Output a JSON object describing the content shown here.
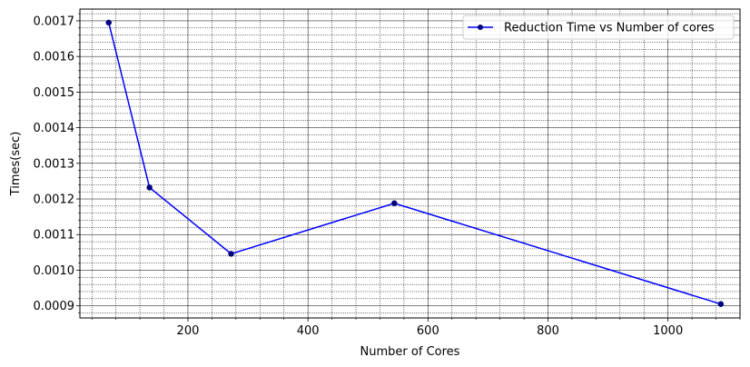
{
  "chart_data": {
    "type": "line",
    "title": "",
    "xlabel": "Number of Cores",
    "ylabel": "Times(sec)",
    "xlim": [
      20,
      1120
    ],
    "ylim": [
      0.000866,
      0.001733
    ],
    "grid": {
      "major": true,
      "minor": true
    },
    "legend_position": "top-right",
    "x_ticks": [
      200,
      400,
      600,
      800,
      1000
    ],
    "x_tick_labels": [
      "200",
      "400",
      "600",
      "800",
      "1000"
    ],
    "y_ticks": [
      0.0009,
      0.001,
      0.0011,
      0.0012,
      0.0013,
      0.0014,
      0.0015,
      0.0016,
      0.0017
    ],
    "y_tick_labels": [
      "0.0009",
      "0.0010",
      "0.0011",
      "0.0012",
      "0.0013",
      "0.0014",
      "0.0015",
      "0.0016",
      "0.0017"
    ],
    "series": [
      {
        "name": "Reduction Time vs Number of cores",
        "color": "#0000ff",
        "marker_color": "#000080",
        "x": [
          68,
          136,
          272,
          544,
          1088
        ],
        "values": [
          0.001695,
          0.001232,
          0.001046,
          0.001188,
          0.000905
        ]
      }
    ]
  }
}
